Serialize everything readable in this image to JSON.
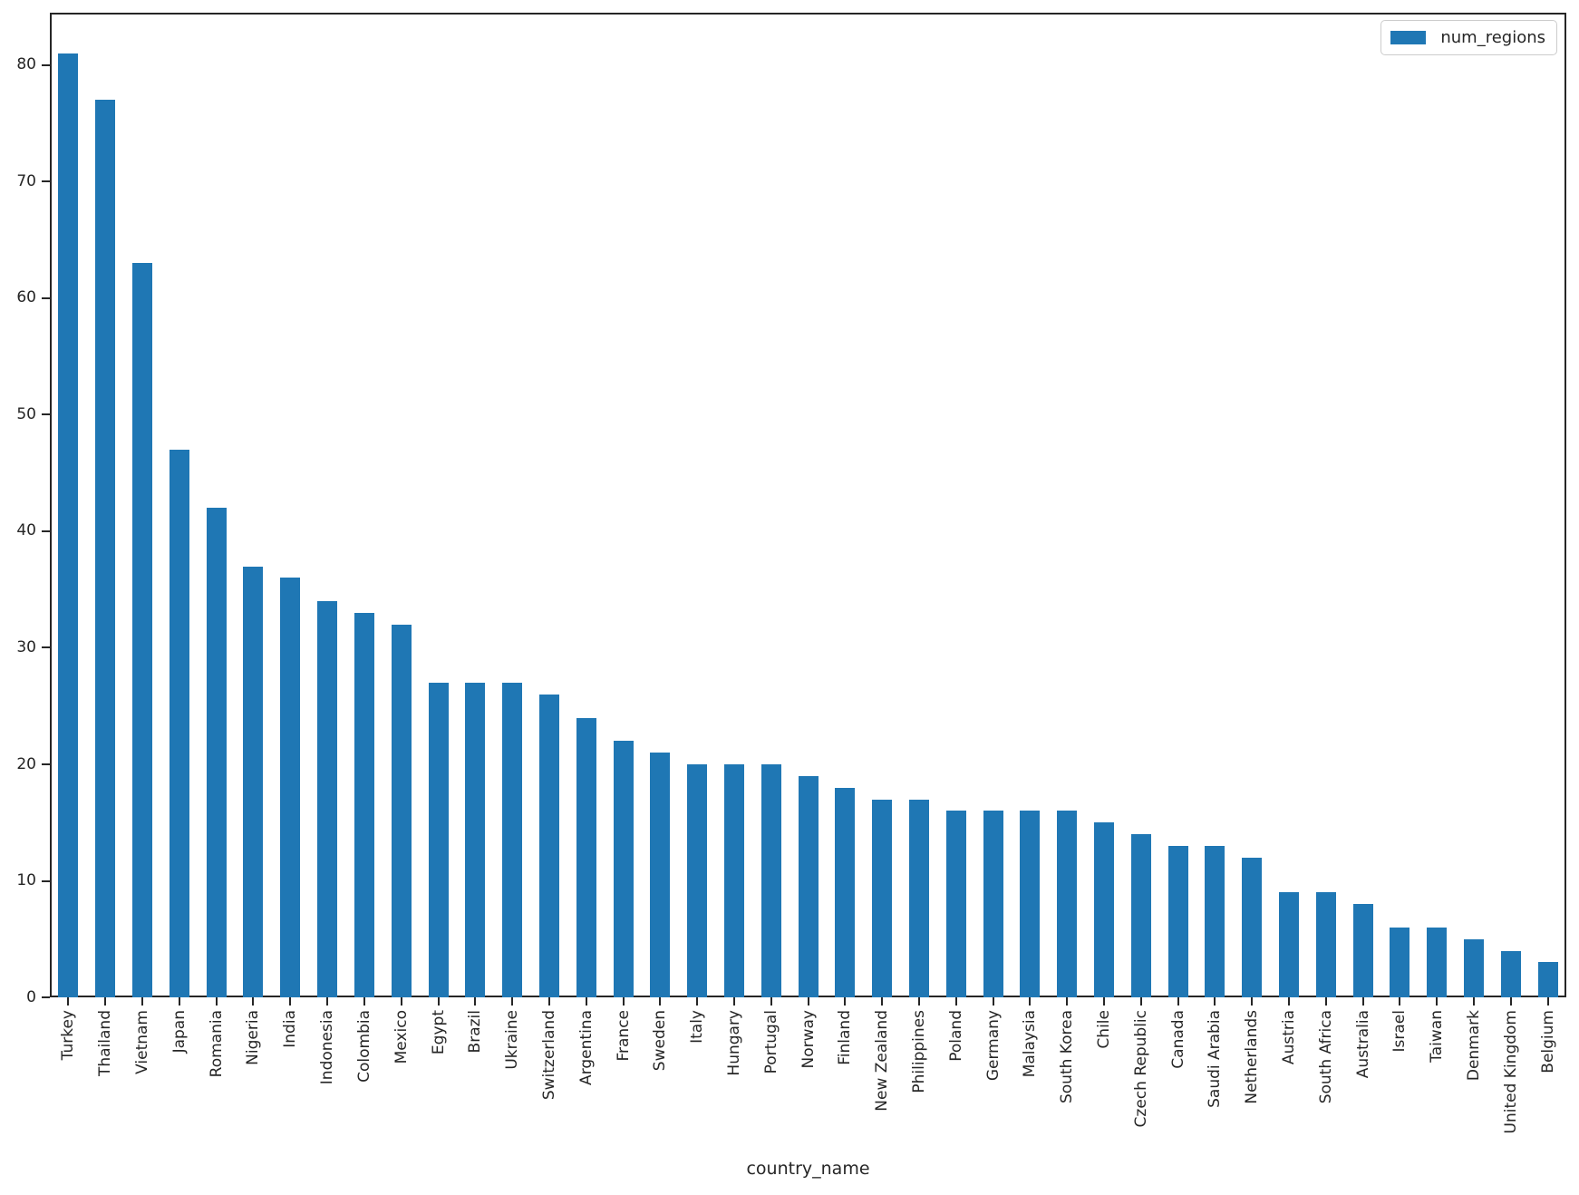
{
  "chart_data": {
    "type": "bar",
    "title": "",
    "xlabel": "country_name",
    "ylabel": "",
    "categories": [
      "Turkey",
      "Thailand",
      "Vietnam",
      "Japan",
      "Romania",
      "Nigeria",
      "India",
      "Indonesia",
      "Colombia",
      "Mexico",
      "Egypt",
      "Brazil",
      "Ukraine",
      "Switzerland",
      "Argentina",
      "France",
      "Sweden",
      "Italy",
      "Hungary",
      "Portugal",
      "Norway",
      "Finland",
      "New Zealand",
      "Philippines",
      "Poland",
      "Germany",
      "Malaysia",
      "South Korea",
      "Chile",
      "Czech Republic",
      "Canada",
      "Saudi Arabia",
      "Netherlands",
      "Austria",
      "South Africa",
      "Australia",
      "Israel",
      "Taiwan",
      "Denmark",
      "United Kingdom",
      "Belgium"
    ],
    "series": [
      {
        "name": "num_regions",
        "values": [
          81,
          77,
          63,
          47,
          42,
          37,
          36,
          34,
          33,
          32,
          27,
          27,
          27,
          26,
          24,
          22,
          21,
          20,
          20,
          20,
          19,
          18,
          17,
          17,
          16,
          16,
          16,
          16,
          15,
          14,
          13,
          13,
          12,
          9,
          9,
          8,
          6,
          6,
          5,
          4,
          3
        ]
      }
    ],
    "yticks": [
      0,
      10,
      20,
      30,
      40,
      50,
      60,
      70,
      80
    ],
    "ylim": [
      0,
      84.5
    ],
    "grid": false,
    "bar_color": "#1f77b4",
    "legend": {
      "position": "upper right",
      "entries": [
        "num_regions"
      ]
    },
    "x_tick_rotation": 90
  }
}
